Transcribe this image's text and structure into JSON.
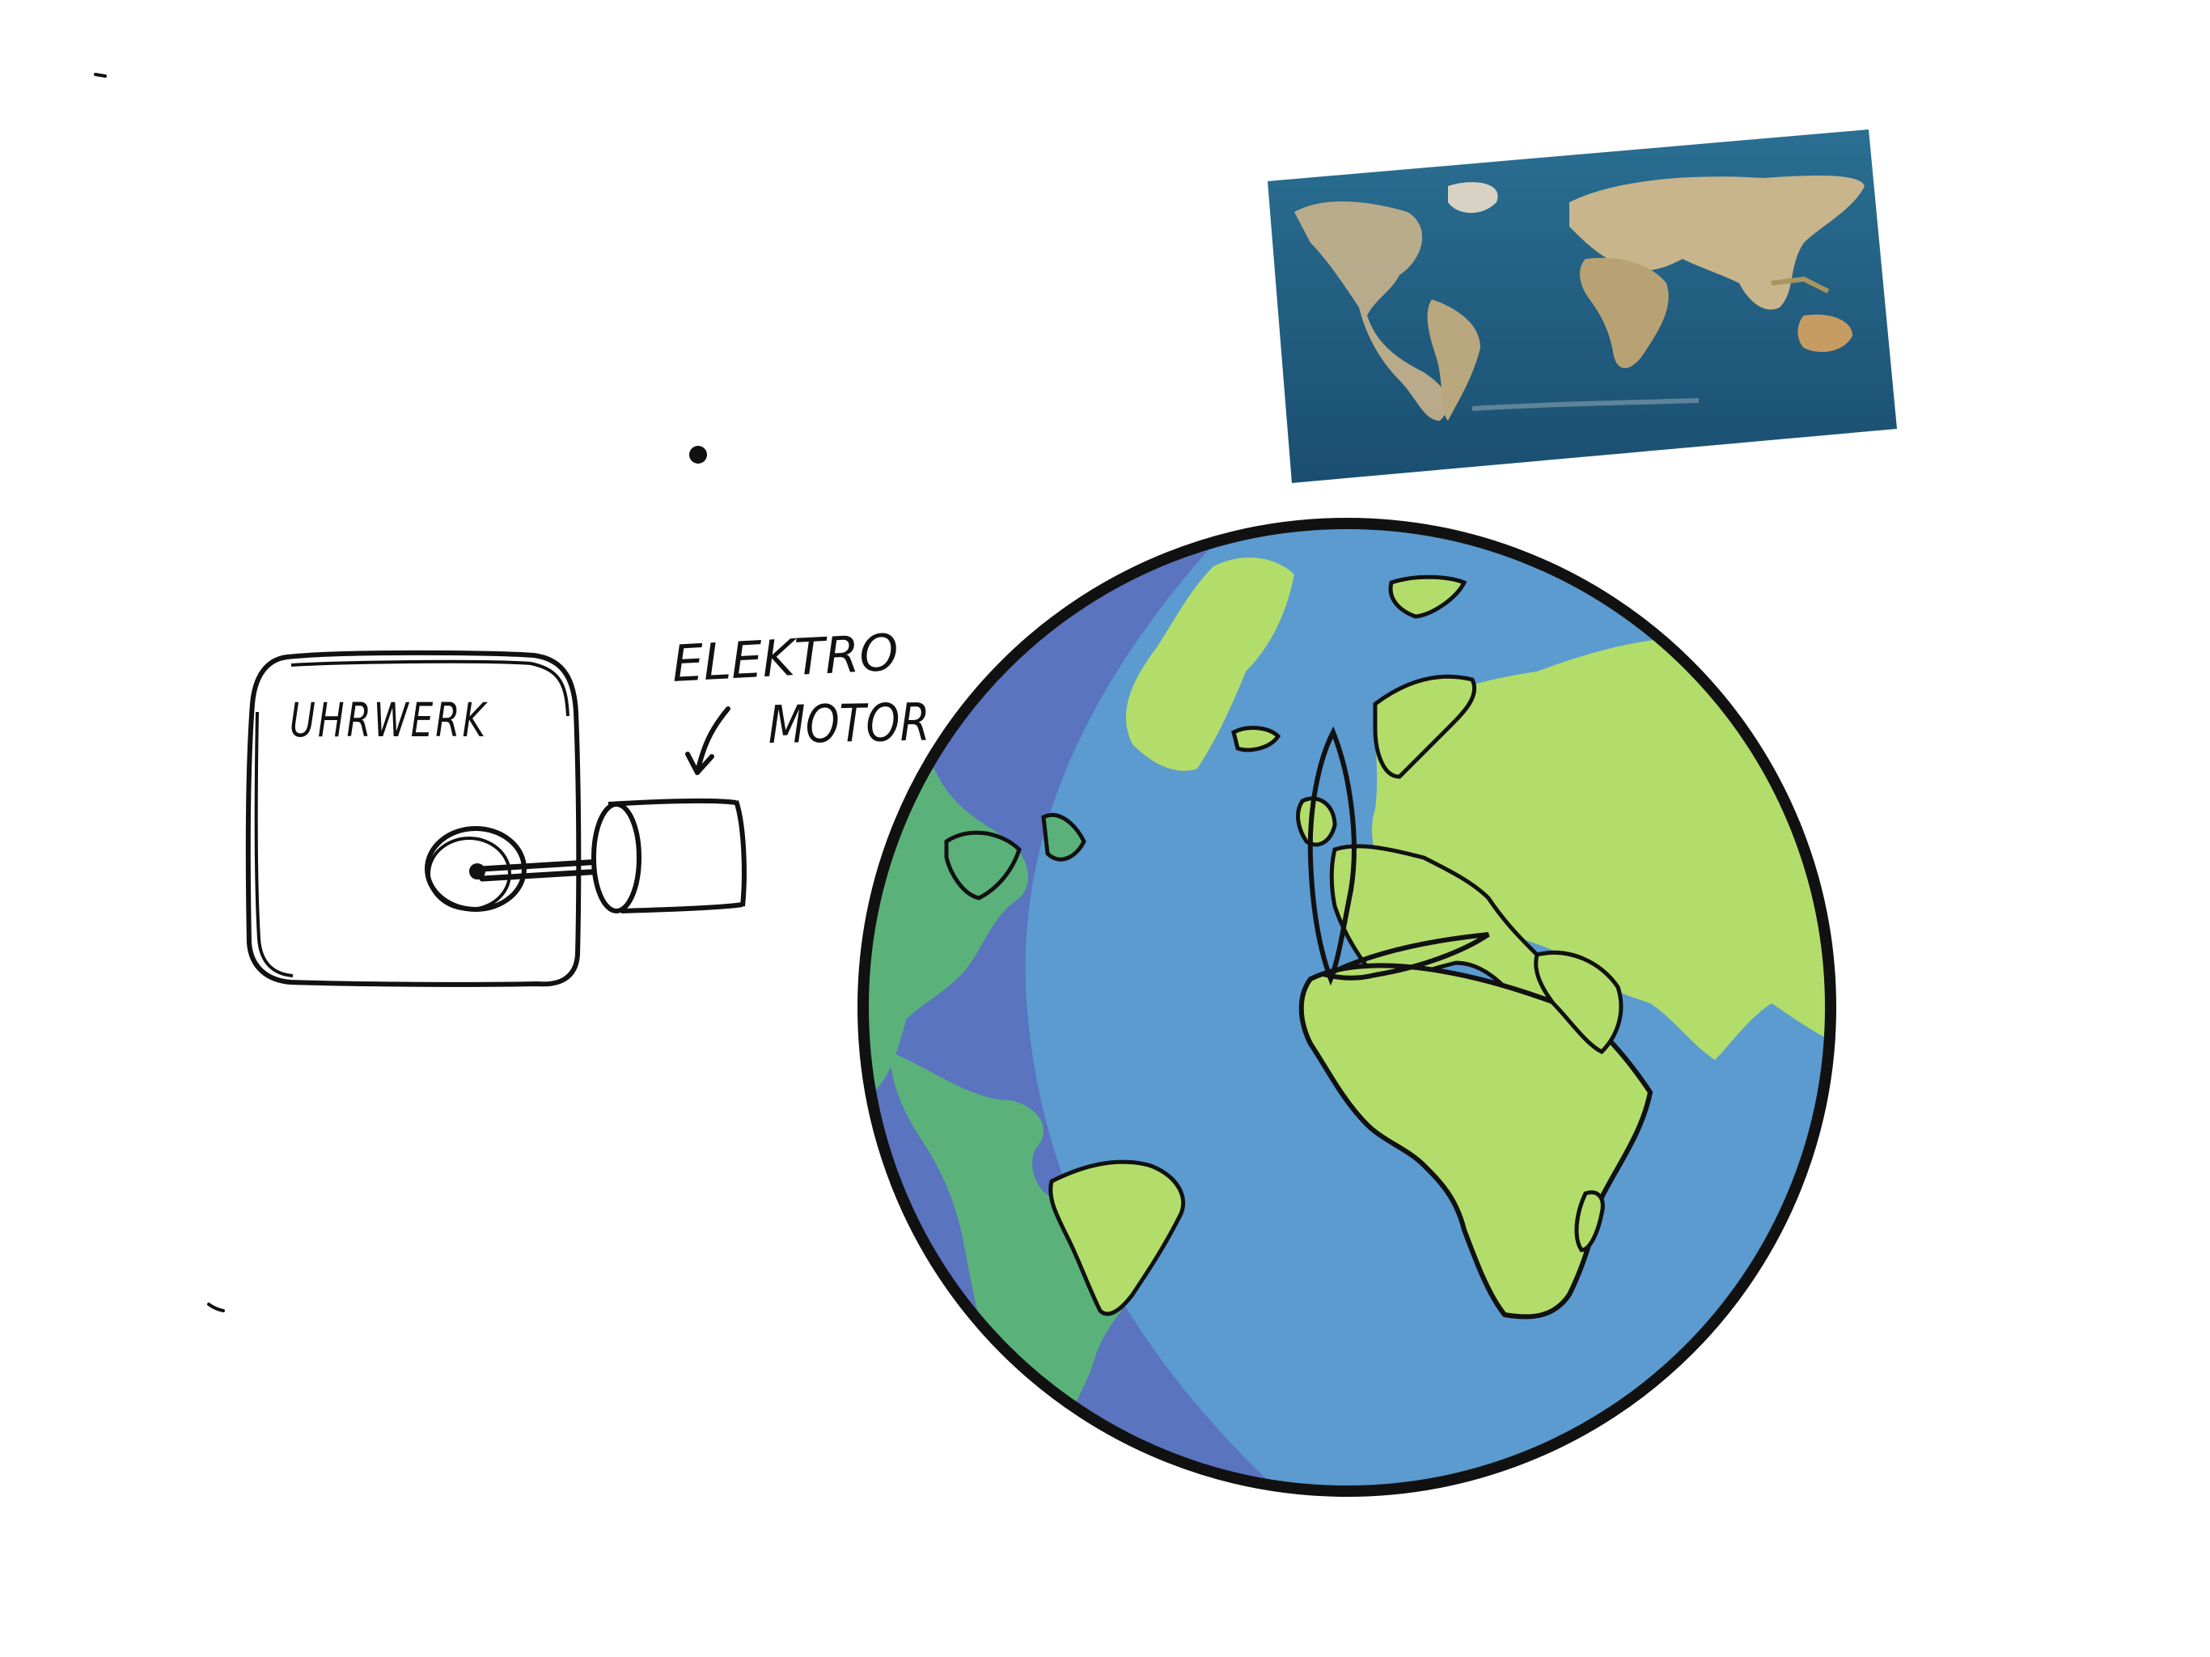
{
  "labels": {
    "uhrwerk": "UHRWERK",
    "elektro": "ELEKTRO",
    "motor": "MOTOR"
  },
  "colors": {
    "ink": "#111111",
    "ocean": "#5b9bd0",
    "ocean_dark": "#5a74bf",
    "land": "#b3dd6a",
    "land_shadow": "#5ab27a",
    "photo_ocean": "#1e5a7f",
    "photo_land": "#c8b48a"
  }
}
